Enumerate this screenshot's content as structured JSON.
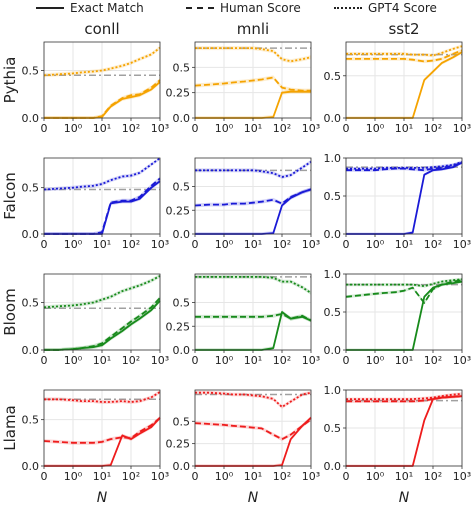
{
  "legend": {
    "exact": "Exact Match",
    "human": "Human Score",
    "gpt4": "GPT4 Score"
  },
  "colors": {
    "Pythia": "#f5a300",
    "Falcon": "#1a1ad6",
    "Bloom": "#178a1b",
    "Llama": "#ee1c1c",
    "reference": "#a0a0a0"
  },
  "chart_data": {
    "type": "line",
    "columns": [
      "conll",
      "mnli",
      "sst2"
    ],
    "rows": [
      "Pythia",
      "Falcon",
      "Bloom",
      "Llama"
    ],
    "xlabel": "N",
    "x_scale": "symlog",
    "x_ticks": [
      "0",
      "10⁰",
      "10¹",
      "10²",
      "10³"
    ],
    "x_values": [
      0,
      0.5,
      1,
      2,
      5,
      10,
      20,
      50,
      100,
      200,
      500,
      1000
    ],
    "series_styles": {
      "exact": "solid",
      "human": "dashed",
      "gpt4": "dotted",
      "reference": "dashdot"
    },
    "panels": [
      {
        "row": "Pythia",
        "col": "conll",
        "ylim": [
          0,
          0.8
        ],
        "yticks": [
          0.0,
          0.5
        ],
        "exact": [
          0,
          0,
          0,
          0,
          0,
          0.01,
          0.12,
          0.2,
          0.22,
          0.24,
          0.3,
          0.38
        ],
        "human": [
          0,
          0,
          0,
          0,
          0,
          0.02,
          0.13,
          0.21,
          0.24,
          0.25,
          0.32,
          0.4
        ],
        "gpt4": [
          0.45,
          0.46,
          0.47,
          0.48,
          0.49,
          0.5,
          0.52,
          0.55,
          0.58,
          0.62,
          0.67,
          0.74
        ],
        "reference": 0.45
      },
      {
        "row": "Pythia",
        "col": "mnli",
        "ylim": [
          0,
          0.75
        ],
        "yticks": [
          0.0,
          0.25,
          0.5
        ],
        "exact": [
          0,
          0,
          0,
          0,
          0,
          0,
          0,
          0.01,
          0.25,
          0.26,
          0.26,
          0.26
        ],
        "human": [
          0.32,
          0.33,
          0.34,
          0.35,
          0.36,
          0.37,
          0.38,
          0.4,
          0.3,
          0.28,
          0.27,
          0.27
        ],
        "gpt4": [
          0.69,
          0.69,
          0.69,
          0.69,
          0.69,
          0.69,
          0.68,
          0.66,
          0.58,
          0.56,
          0.58,
          0.6
        ],
        "reference": 0.69
      },
      {
        "row": "Pythia",
        "col": "sst2",
        "ylim": [
          0,
          0.9
        ],
        "yticks": [
          0.0,
          0.5
        ],
        "exact": [
          0,
          0,
          0,
          0,
          0,
          0,
          0,
          0.45,
          0.55,
          0.65,
          0.72,
          0.78
        ],
        "human": [
          0.7,
          0.7,
          0.7,
          0.7,
          0.7,
          0.7,
          0.69,
          0.67,
          0.68,
          0.7,
          0.76,
          0.8
        ],
        "gpt4": [
          0.76,
          0.76,
          0.76,
          0.76,
          0.76,
          0.76,
          0.75,
          0.75,
          0.74,
          0.77,
          0.82,
          0.85
        ],
        "reference": 0.75
      },
      {
        "row": "Falcon",
        "col": "conll",
        "ylim": [
          0,
          0.82
        ],
        "yticks": [
          0.0,
          0.5
        ],
        "exact": [
          0,
          0,
          0,
          0,
          0,
          0,
          0.33,
          0.35,
          0.35,
          0.38,
          0.5,
          0.57
        ],
        "human": [
          0,
          0,
          0,
          0,
          0,
          0.02,
          0.34,
          0.36,
          0.36,
          0.4,
          0.52,
          0.6
        ],
        "gpt4": [
          0.48,
          0.49,
          0.5,
          0.51,
          0.52,
          0.54,
          0.58,
          0.62,
          0.63,
          0.66,
          0.75,
          0.82
        ],
        "reference": 0.48
      },
      {
        "row": "Falcon",
        "col": "mnli",
        "ylim": [
          0,
          0.8
        ],
        "yticks": [
          0.0,
          0.25,
          0.5
        ],
        "exact": [
          0,
          0,
          0,
          0,
          0,
          0,
          0,
          0.01,
          0.3,
          0.38,
          0.44,
          0.47
        ],
        "human": [
          0.3,
          0.31,
          0.31,
          0.32,
          0.32,
          0.33,
          0.34,
          0.36,
          0.32,
          0.39,
          0.44,
          0.47
        ],
        "gpt4": [
          0.67,
          0.67,
          0.67,
          0.67,
          0.67,
          0.67,
          0.66,
          0.64,
          0.6,
          0.62,
          0.7,
          0.76
        ],
        "reference": 0.67
      },
      {
        "row": "Falcon",
        "col": "sst2",
        "ylim": [
          0,
          1.0
        ],
        "yticks": [
          0.0,
          0.5,
          1.0
        ],
        "exact": [
          0,
          0,
          0,
          0,
          0,
          0,
          0.02,
          0.78,
          0.84,
          0.85,
          0.88,
          0.94
        ],
        "human": [
          0.84,
          0.84,
          0.84,
          0.85,
          0.86,
          0.86,
          0.85,
          0.84,
          0.86,
          0.87,
          0.9,
          0.94
        ],
        "gpt4": [
          0.86,
          0.86,
          0.86,
          0.87,
          0.87,
          0.87,
          0.87,
          0.87,
          0.88,
          0.89,
          0.91,
          0.95
        ],
        "reference": 0.88
      },
      {
        "row": "Bloom",
        "col": "conll",
        "ylim": [
          0,
          0.8
        ],
        "yticks": [
          0.0,
          0.5
        ],
        "exact": [
          0,
          0,
          0.01,
          0.02,
          0.03,
          0.05,
          0.12,
          0.2,
          0.27,
          0.33,
          0.42,
          0.52
        ],
        "human": [
          0,
          0,
          0.01,
          0.02,
          0.04,
          0.07,
          0.14,
          0.23,
          0.3,
          0.36,
          0.45,
          0.55
        ],
        "gpt4": [
          0.45,
          0.46,
          0.47,
          0.48,
          0.5,
          0.53,
          0.56,
          0.62,
          0.65,
          0.68,
          0.73,
          0.78
        ],
        "reference": 0.44
      },
      {
        "row": "Bloom",
        "col": "mnli",
        "ylim": [
          0,
          0.8
        ],
        "yticks": [
          0.0,
          0.25,
          0.5
        ],
        "exact": [
          0,
          0,
          0,
          0,
          0,
          0,
          0,
          0.02,
          0.4,
          0.33,
          0.35,
          0.31
        ],
        "human": [
          0.35,
          0.35,
          0.35,
          0.35,
          0.35,
          0.35,
          0.35,
          0.36,
          0.38,
          0.33,
          0.36,
          0.31
        ],
        "gpt4": [
          0.77,
          0.77,
          0.77,
          0.77,
          0.77,
          0.77,
          0.77,
          0.76,
          0.72,
          0.72,
          0.66,
          0.6
        ],
        "reference": 0.77
      },
      {
        "row": "Bloom",
        "col": "sst2",
        "ylim": [
          0,
          1.0
        ],
        "yticks": [
          0.0,
          0.5,
          1.0
        ],
        "exact": [
          0,
          0,
          0,
          0,
          0,
          0,
          0,
          0.7,
          0.82,
          0.86,
          0.88,
          0.9
        ],
        "human": [
          0.7,
          0.72,
          0.74,
          0.75,
          0.76,
          0.78,
          0.82,
          0.62,
          0.8,
          0.86,
          0.9,
          0.92
        ],
        "gpt4": [
          0.86,
          0.86,
          0.86,
          0.86,
          0.86,
          0.86,
          0.86,
          0.84,
          0.87,
          0.9,
          0.92,
          0.93
        ],
        "reference": 0.86
      },
      {
        "row": "Llama",
        "col": "conll",
        "ylim": [
          0,
          0.82
        ],
        "yticks": [
          0.0,
          0.5
        ],
        "exact": [
          0,
          0,
          0,
          0,
          0,
          0,
          0.01,
          0.33,
          0.29,
          0.35,
          0.42,
          0.52
        ],
        "human": [
          0.27,
          0.26,
          0.25,
          0.25,
          0.25,
          0.26,
          0.29,
          0.31,
          0.3,
          0.37,
          0.44,
          0.52
        ],
        "gpt4": [
          0.72,
          0.72,
          0.71,
          0.7,
          0.7,
          0.69,
          0.69,
          0.7,
          0.69,
          0.7,
          0.74,
          0.8
        ],
        "reference": 0.72
      },
      {
        "row": "Llama",
        "col": "mnli",
        "ylim": [
          0,
          0.85
        ],
        "yticks": [
          0.0,
          0.25,
          0.5
        ],
        "exact": [
          0,
          0,
          0,
          0,
          0,
          0,
          0,
          0,
          0.01,
          0.3,
          0.45,
          0.54
        ],
        "human": [
          0.48,
          0.47,
          0.46,
          0.45,
          0.44,
          0.43,
          0.42,
          0.35,
          0.3,
          0.35,
          0.45,
          0.52
        ],
        "gpt4": [
          0.82,
          0.82,
          0.81,
          0.8,
          0.8,
          0.79,
          0.78,
          0.75,
          0.66,
          0.72,
          0.8,
          0.82
        ],
        "reference": 0.8
      },
      {
        "row": "Llama",
        "col": "sst2",
        "ylim": [
          0,
          1.0
        ],
        "yticks": [
          0.0,
          0.5,
          1.0
        ],
        "exact": [
          0,
          0,
          0,
          0,
          0,
          0,
          0,
          0.6,
          0.88,
          0.9,
          0.91,
          0.92
        ],
        "human": [
          0.85,
          0.85,
          0.85,
          0.85,
          0.85,
          0.85,
          0.85,
          0.86,
          0.88,
          0.9,
          0.91,
          0.92
        ],
        "gpt4": [
          0.88,
          0.88,
          0.88,
          0.88,
          0.88,
          0.88,
          0.88,
          0.89,
          0.9,
          0.92,
          0.94,
          0.95
        ],
        "reference": 0.86
      }
    ]
  }
}
